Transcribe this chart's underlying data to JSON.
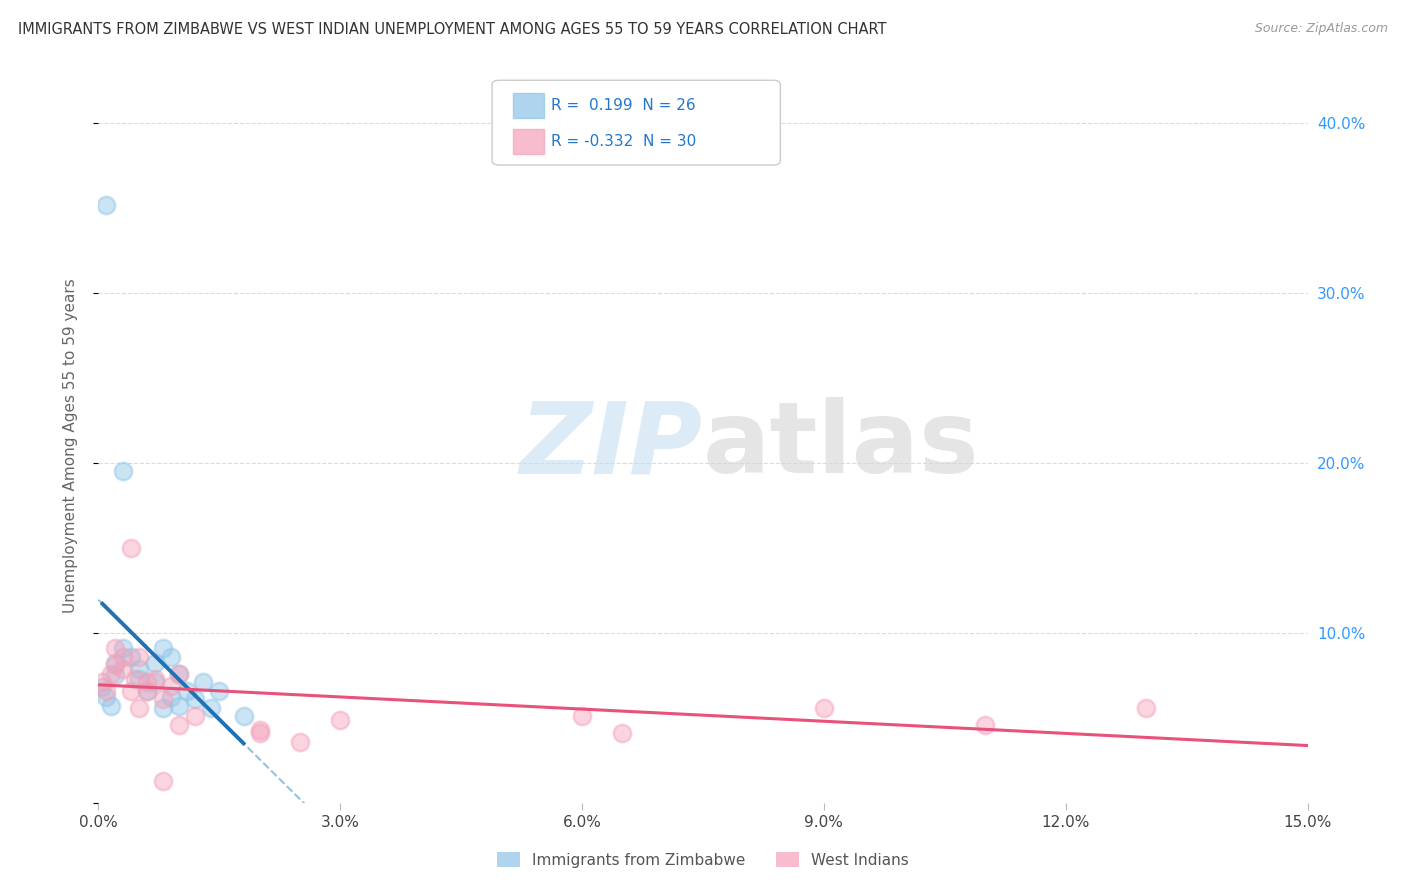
{
  "title": "IMMIGRANTS FROM ZIMBABWE VS WEST INDIAN UNEMPLOYMENT AMONG AGES 55 TO 59 YEARS CORRELATION CHART",
  "source": "Source: ZipAtlas.com",
  "ylabel": "Unemployment Among Ages 55 to 59 years",
  "xlim": [
    0.0,
    0.15
  ],
  "ylim": [
    0.0,
    0.42
  ],
  "xticks": [
    0.0,
    0.03,
    0.06,
    0.09,
    0.12,
    0.15
  ],
  "xticklabels": [
    "0.0%",
    "3.0%",
    "6.0%",
    "9.0%",
    "12.0%",
    "15.0%"
  ],
  "yticks_right": [
    0.1,
    0.2,
    0.3,
    0.4
  ],
  "yticklabels_right": [
    "10.0%",
    "20.0%",
    "30.0%",
    "40.0%"
  ],
  "background_color": "#ffffff",
  "grid_color": "#cccccc",
  "legend_R1": "0.199",
  "legend_N1": "26",
  "legend_R2": "-0.332",
  "legend_N2": "30",
  "blue_color": "#8dc4e8",
  "pink_color": "#f4a0b8",
  "blue_line_color": "#2171b5",
  "pink_line_color": "#e8517a",
  "dashed_line_color": "#88bbdd",
  "label1": "Immigrants from Zimbabwe",
  "label2": "West Indians",
  "scatter_blue": [
    [
      0.001,
      0.352
    ],
    [
      0.003,
      0.195
    ],
    [
      0.0005,
      0.068
    ],
    [
      0.001,
      0.062
    ],
    [
      0.0015,
      0.057
    ],
    [
      0.002,
      0.082
    ],
    [
      0.002,
      0.075
    ],
    [
      0.003,
      0.091
    ],
    [
      0.004,
      0.086
    ],
    [
      0.005,
      0.079
    ],
    [
      0.005,
      0.073
    ],
    [
      0.006,
      0.066
    ],
    [
      0.007,
      0.071
    ],
    [
      0.007,
      0.082
    ],
    [
      0.008,
      0.091
    ],
    [
      0.008,
      0.056
    ],
    [
      0.009,
      0.086
    ],
    [
      0.009,
      0.062
    ],
    [
      0.01,
      0.057
    ],
    [
      0.01,
      0.076
    ],
    [
      0.011,
      0.066
    ],
    [
      0.012,
      0.061
    ],
    [
      0.013,
      0.071
    ],
    [
      0.014,
      0.056
    ],
    [
      0.015,
      0.066
    ],
    [
      0.018,
      0.051
    ]
  ],
  "scatter_pink": [
    [
      0.0005,
      0.071
    ],
    [
      0.001,
      0.066
    ],
    [
      0.0015,
      0.076
    ],
    [
      0.002,
      0.081
    ],
    [
      0.002,
      0.091
    ],
    [
      0.003,
      0.086
    ],
    [
      0.003,
      0.079
    ],
    [
      0.004,
      0.066
    ],
    [
      0.0045,
      0.073
    ],
    [
      0.005,
      0.086
    ],
    [
      0.005,
      0.056
    ],
    [
      0.006,
      0.071
    ],
    [
      0.006,
      0.066
    ],
    [
      0.007,
      0.073
    ],
    [
      0.008,
      0.061
    ],
    [
      0.009,
      0.069
    ],
    [
      0.01,
      0.076
    ],
    [
      0.01,
      0.046
    ],
    [
      0.012,
      0.051
    ],
    [
      0.02,
      0.041
    ],
    [
      0.025,
      0.036
    ],
    [
      0.004,
      0.15
    ],
    [
      0.06,
      0.051
    ],
    [
      0.065,
      0.041
    ],
    [
      0.09,
      0.056
    ],
    [
      0.11,
      0.046
    ],
    [
      0.13,
      0.056
    ],
    [
      0.02,
      0.043
    ],
    [
      0.03,
      0.049
    ],
    [
      0.008,
      0.013
    ]
  ]
}
